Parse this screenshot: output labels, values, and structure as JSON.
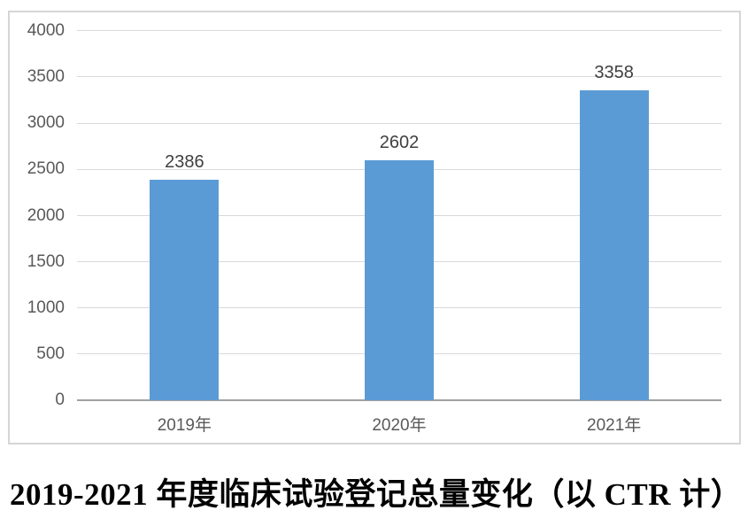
{
  "figure_title": "2019-2021 年度临床试验登记总量变化（以 CTR 计）",
  "chart_data": {
    "type": "bar",
    "title": "2019-2021 年度临床试验登记总量变化（以 CTR 计）",
    "title_position": "below-chart-left-aligned",
    "categories": [
      "2019年",
      "2020年",
      "2021年"
    ],
    "values": [
      2386,
      2602,
      3358
    ],
    "data_labels": [
      "2386",
      "2602",
      "3358"
    ],
    "xlabel": "",
    "ylabel": "",
    "ylim": [
      0,
      4000
    ],
    "ytick_step": 500,
    "yticks": [
      0,
      500,
      1000,
      1500,
      2000,
      2500,
      3000,
      3500,
      4000
    ],
    "grid": true,
    "legend": false,
    "colors": {
      "bar": "#5b9bd5",
      "gridline": "#d9d9d9",
      "axis_line": "#a0a0a0",
      "tick_label": "#595959",
      "value_label": "#404040",
      "frame_border": "#d6d6d6",
      "background": "#ffffff",
      "title_text": "#000000"
    }
  }
}
